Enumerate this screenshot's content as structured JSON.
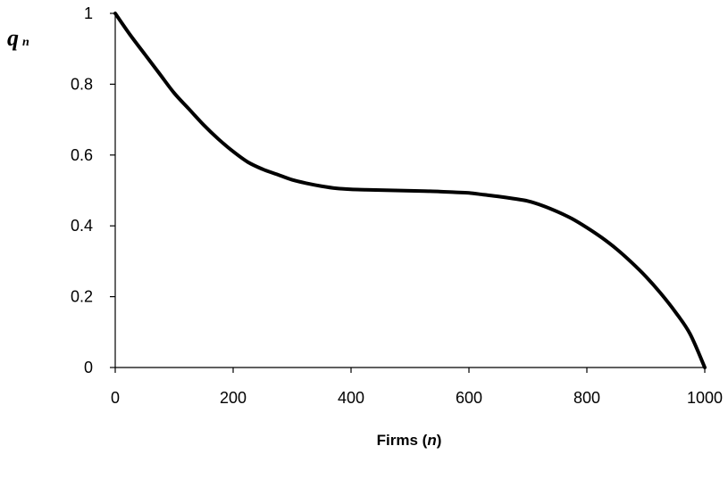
{
  "chart_data": {
    "type": "line",
    "title": "",
    "xlabel": {
      "prefix": "Firms (",
      "var": "n",
      "suffix": ")"
    },
    "ylabel": {
      "main": "q",
      "sub": "n"
    },
    "xlim": [
      0,
      1000
    ],
    "ylim": [
      0,
      1
    ],
    "x_ticks": [
      0,
      200,
      400,
      600,
      800,
      1000
    ],
    "x_tick_labels": [
      "0",
      "200",
      "400",
      "600",
      "800",
      "1000"
    ],
    "y_ticks": [
      0,
      0.2,
      0.4,
      0.6,
      0.8,
      1
    ],
    "y_tick_labels": [
      "0",
      "0.2",
      "0.4",
      "0.6",
      "0.8",
      "1"
    ],
    "grid": false,
    "legend": "none",
    "series": [
      {
        "color": "#000000",
        "x": [
          0,
          25,
          50,
          75,
          100,
          125,
          150,
          175,
          200,
          225,
          250,
          275,
          300,
          325,
          350,
          375,
          400,
          425,
          450,
          475,
          500,
          525,
          550,
          575,
          600,
          625,
          650,
          675,
          700,
          725,
          750,
          775,
          800,
          825,
          850,
          875,
          900,
          925,
          950,
          975,
          1000
        ],
        "y": [
          1.0,
          0.94,
          0.885,
          0.83,
          0.775,
          0.73,
          0.685,
          0.645,
          0.61,
          0.58,
          0.56,
          0.545,
          0.53,
          0.52,
          0.512,
          0.506,
          0.503,
          0.502,
          0.501,
          0.5,
          0.499,
          0.498,
          0.497,
          0.495,
          0.493,
          0.488,
          0.483,
          0.477,
          0.47,
          0.457,
          0.44,
          0.42,
          0.395,
          0.367,
          0.335,
          0.298,
          0.257,
          0.21,
          0.157,
          0.095,
          0.0
        ]
      }
    ]
  }
}
